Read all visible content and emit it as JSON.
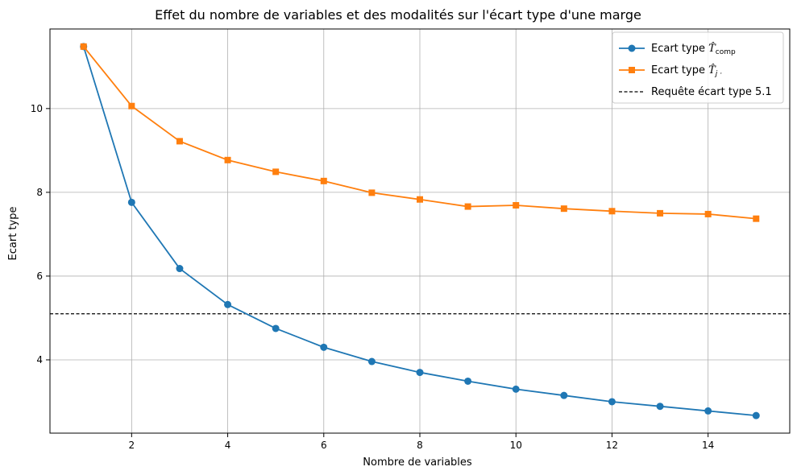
{
  "chart_data": {
    "type": "line",
    "title": "Effet du nombre de variables et des modalités sur l'écart type d'une marge",
    "xlabel": "Nombre de variables",
    "ylabel": "Ecart type",
    "xlim": [
      0.3,
      15.7
    ],
    "ylim": [
      2.25,
      11.9
    ],
    "x_ticks": [
      2,
      4,
      6,
      8,
      10,
      12,
      14
    ],
    "y_ticks": [
      4,
      6,
      8,
      10
    ],
    "grid": true,
    "legend_position": "top-right",
    "x": [
      1,
      2,
      3,
      4,
      5,
      6,
      7,
      8,
      9,
      10,
      11,
      12,
      13,
      14,
      15
    ],
    "series": [
      {
        "name_prefix": "Ecart type ",
        "name_math": "T̂",
        "name_sub": "comp",
        "color": "#1f77b4",
        "marker": "circle",
        "values": [
          11.48,
          7.76,
          6.18,
          5.32,
          4.75,
          4.3,
          3.96,
          3.7,
          3.49,
          3.3,
          3.15,
          3.0,
          2.89,
          2.78,
          2.67
        ]
      },
      {
        "name_prefix": "Ecart type ",
        "name_math": "T̂",
        "name_sub": "j ·",
        "color": "#ff7f0e",
        "marker": "square",
        "values": [
          11.48,
          10.06,
          9.22,
          8.77,
          8.49,
          8.27,
          7.99,
          7.83,
          7.66,
          7.69,
          7.61,
          7.55,
          7.5,
          7.48,
          7.37
        ]
      }
    ],
    "reference_line": {
      "label": "Requête écart type 5.1",
      "y": 5.1,
      "color": "#000000",
      "style": "dashed"
    }
  }
}
